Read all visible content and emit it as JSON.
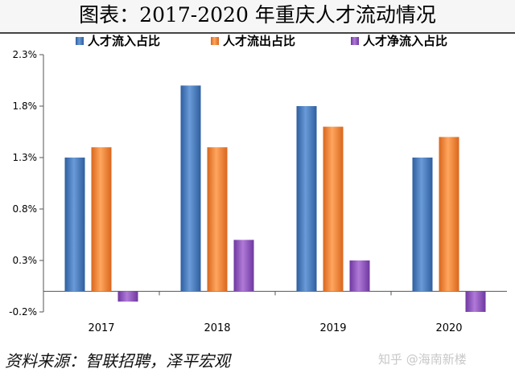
{
  "header": {
    "title": "图表：2017-2020 年重庆人才流动情况"
  },
  "footer": {
    "source": "资料来源：智联招聘，泽平宏观",
    "watermark": "知乎 @海南新楼"
  },
  "colors": {
    "inflow": "#4a7fc1",
    "outflow": "#f08a3c",
    "net": "#9356c2"
  },
  "chart_data": {
    "type": "bar",
    "title": "图表：2017-2020 年重庆人才流动情况",
    "xlabel": "",
    "ylabel": "",
    "categories": [
      "2017",
      "2018",
      "2019",
      "2020"
    ],
    "series": [
      {
        "name": "人才流入占比",
        "values": [
          1.3,
          2.0,
          1.8,
          1.3
        ]
      },
      {
        "name": "人才流出占比",
        "values": [
          1.4,
          1.4,
          1.6,
          1.5
        ]
      },
      {
        "name": "人才净流入占比",
        "values": [
          -0.1,
          0.5,
          0.3,
          -0.2
        ]
      }
    ],
    "ylim": [
      -0.2,
      2.3
    ],
    "yticks": [
      -0.2,
      0.3,
      0.8,
      1.3,
      1.8,
      2.3
    ],
    "ytick_labels": [
      "-0.2%",
      "0.3%",
      "0.8%",
      "1.3%",
      "1.8%",
      "2.3%"
    ],
    "grid": false,
    "legend": "top"
  }
}
